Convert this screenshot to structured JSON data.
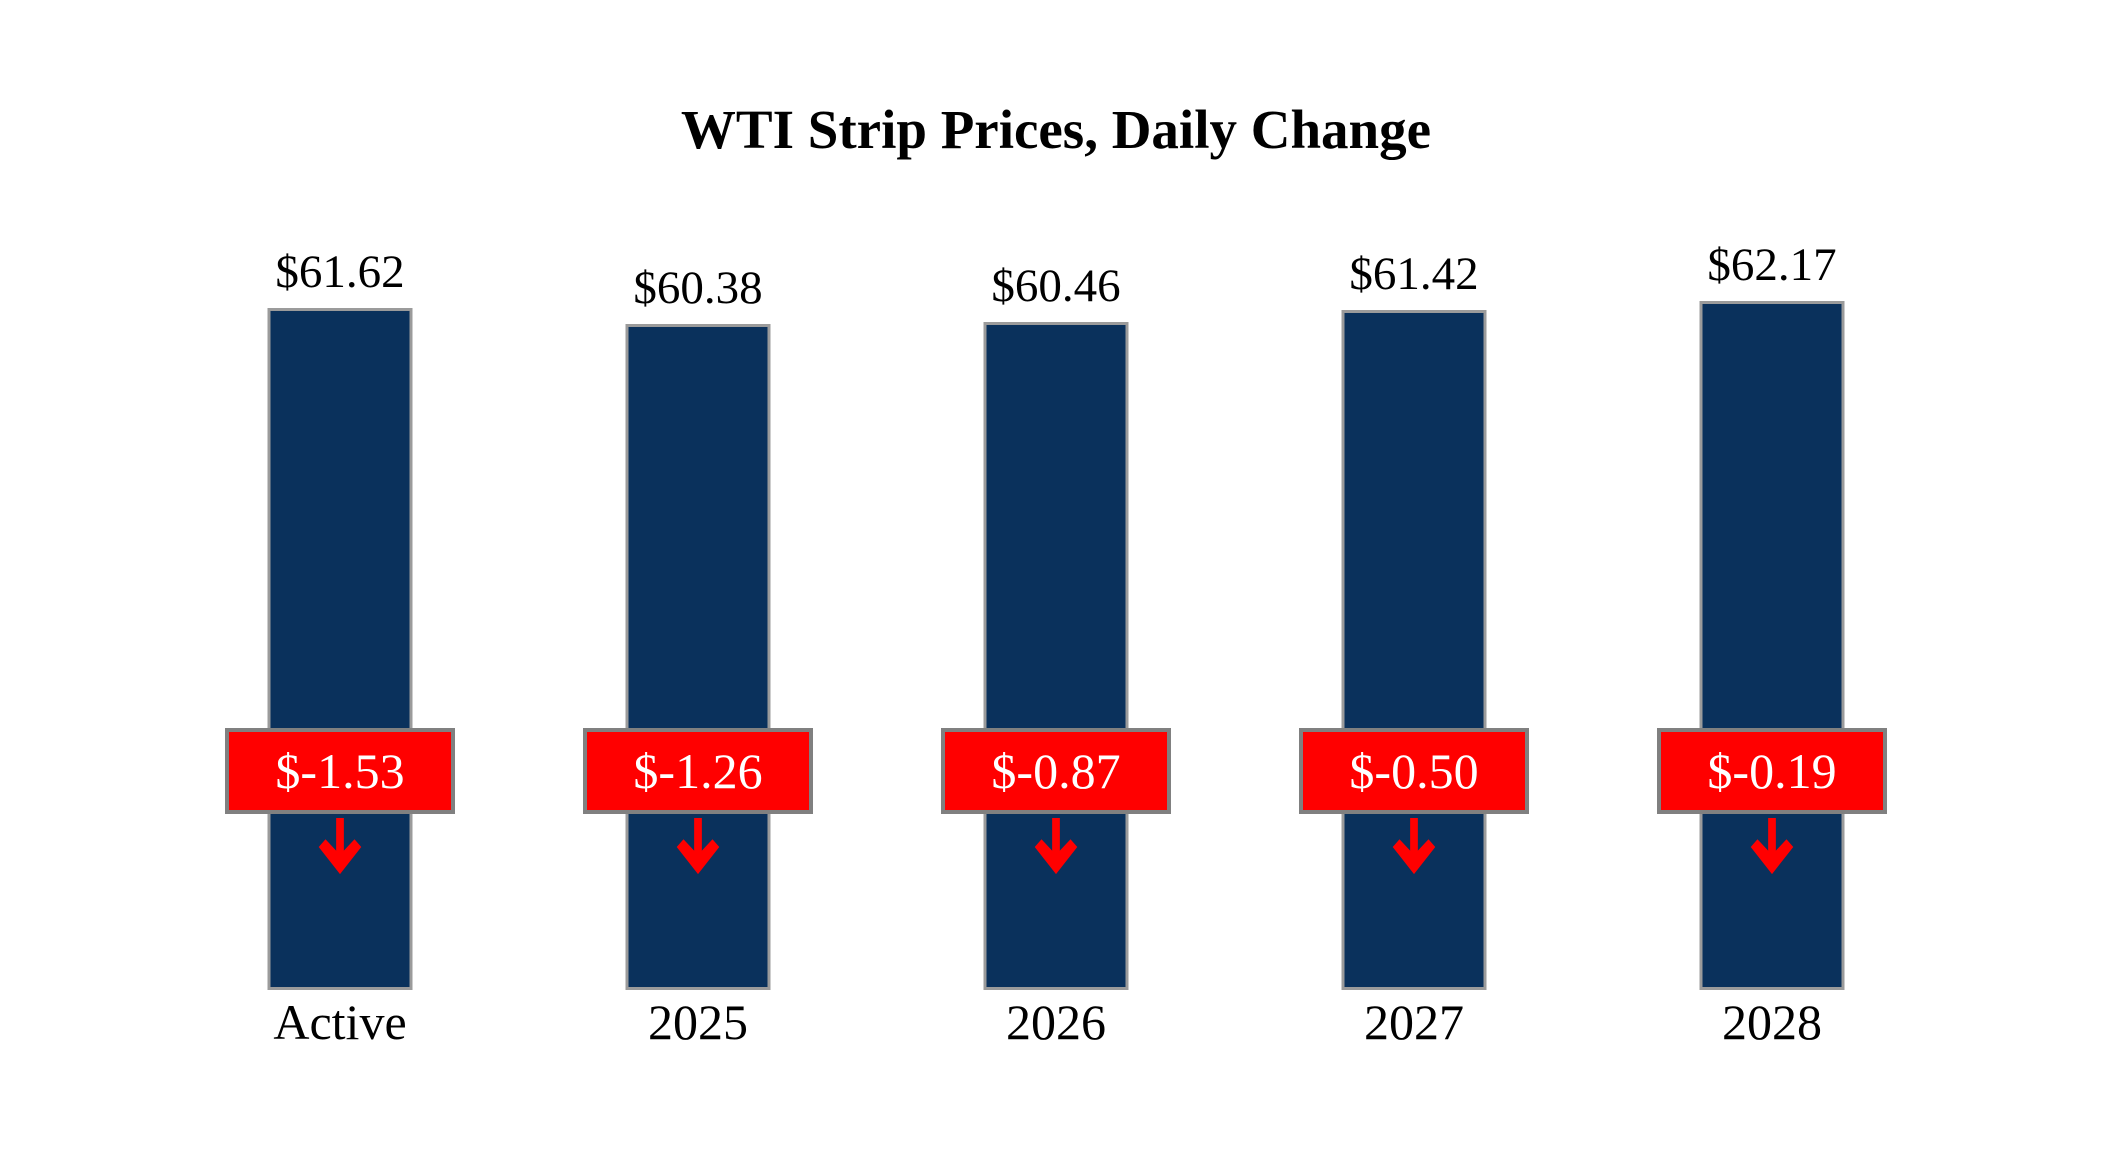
{
  "title": "WTI Strip Prices, Daily Change",
  "colors": {
    "background": "#ffffff",
    "bar_fill": "#0a315c",
    "bar_border": "#9b9b9b",
    "change_badge_fill": "#ff0000",
    "change_badge_border": "#808080",
    "change_badge_text": "#ffffff",
    "arrow": "#ff0000",
    "label_text": "#000000"
  },
  "icons": {
    "change_direction": "down-arrow"
  },
  "chart_data": {
    "type": "bar",
    "title": "WTI Strip Prices, Daily Change",
    "categories": [
      "Active",
      "2025",
      "2026",
      "2027",
      "2028"
    ],
    "series": [
      {
        "name": "WTI Strip Price",
        "values": [
          61.62,
          60.38,
          60.46,
          61.42,
          62.17
        ],
        "labels": [
          "$61.62",
          "$60.38",
          "$60.46",
          "$61.42",
          "$62.17"
        ]
      },
      {
        "name": "Daily Change",
        "values": [
          -1.53,
          -1.26,
          -0.87,
          -0.5,
          -0.19
        ],
        "labels": [
          "$-1.53",
          "$-1.26",
          "$-0.87",
          "$-0.50",
          "$-0.19"
        ]
      }
    ],
    "xlabel": "",
    "ylabel": "",
    "ylim": [
      8,
      66
    ],
    "grid": false,
    "axes_visible": false,
    "legend_position": "none",
    "annotations": "red badge with daily change value and red down arrow centered on each bar"
  }
}
